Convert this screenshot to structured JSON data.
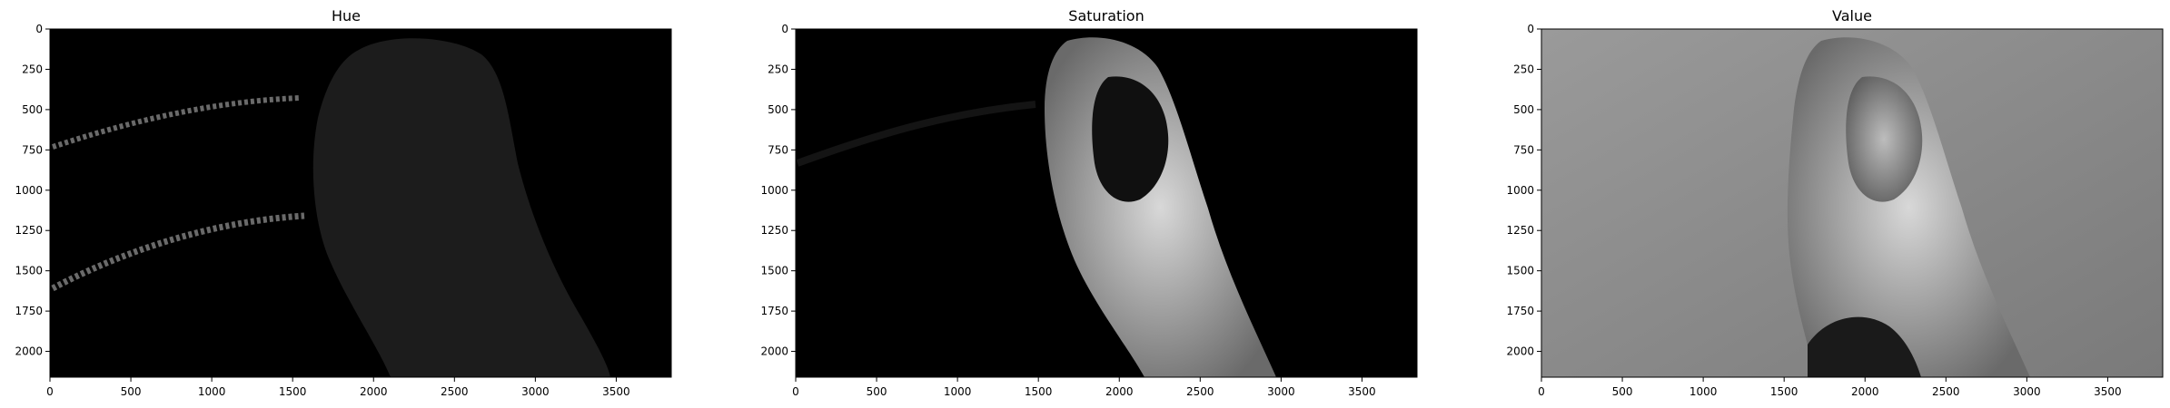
{
  "chart_data": [
    {
      "type": "heatmap",
      "title": "Hue",
      "xlabel": "",
      "ylabel": "",
      "xlim": [
        0,
        3840
      ],
      "ylim": [
        2160,
        0
      ],
      "xticks": [
        0,
        500,
        1000,
        1500,
        2000,
        2500,
        3000,
        3500
      ],
      "yticks": [
        0,
        250,
        500,
        750,
        1000,
        1250,
        1500,
        1750,
        2000
      ],
      "colormap": "gray",
      "background": "#000000"
    },
    {
      "type": "heatmap",
      "title": "Saturation",
      "xlabel": "",
      "ylabel": "",
      "xlim": [
        0,
        3840
      ],
      "ylim": [
        2160,
        0
      ],
      "xticks": [
        0,
        500,
        1000,
        1500,
        2000,
        2500,
        3000,
        3500
      ],
      "yticks": [
        0,
        250,
        500,
        750,
        1000,
        1250,
        1500,
        1750,
        2000
      ],
      "colormap": "gray",
      "background": "#000000"
    },
    {
      "type": "heatmap",
      "title": "Value",
      "xlabel": "",
      "ylabel": "",
      "xlim": [
        0,
        3840
      ],
      "ylim": [
        2160,
        0
      ],
      "xticks": [
        0,
        500,
        1000,
        1500,
        2000,
        2500,
        3000,
        3500
      ],
      "yticks": [
        0,
        250,
        500,
        750,
        1000,
        1250,
        1500,
        1750,
        2000
      ],
      "colormap": "gray",
      "background": "#8a8a8a"
    }
  ]
}
